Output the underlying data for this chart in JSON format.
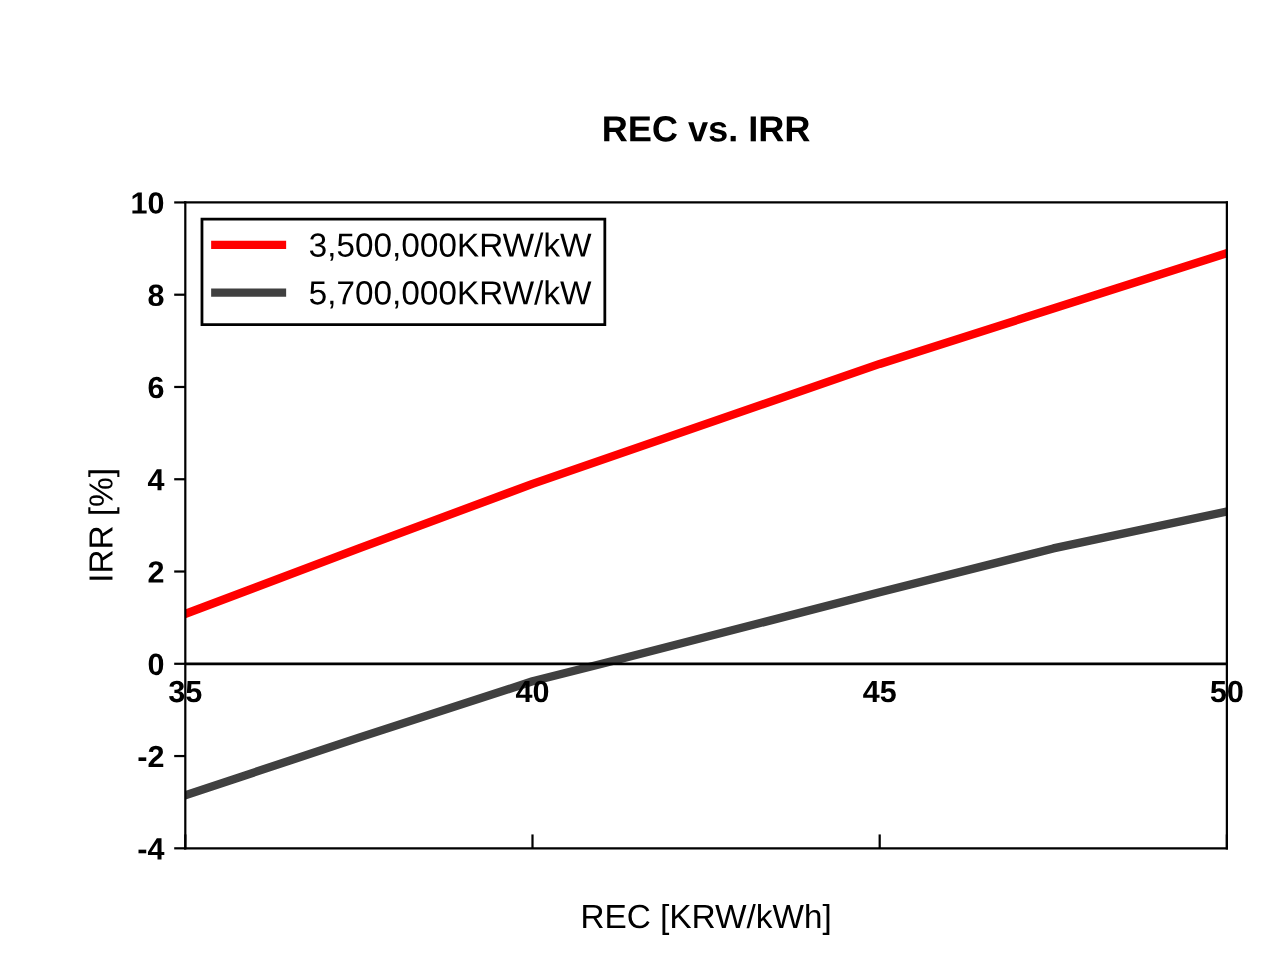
{
  "chart_data": {
    "type": "line",
    "title": "REC vs. IRR",
    "xlabel": "REC [KRW/kWh]",
    "ylabel": "IRR [%]",
    "xlim": [
      35,
      50
    ],
    "xticks": [
      35,
      40,
      45,
      50
    ],
    "ylim": [
      -4,
      10
    ],
    "yticks": [
      -4,
      -2,
      0,
      2,
      4,
      6,
      8,
      10
    ],
    "legend": "top left",
    "grid": false,
    "marker": "none",
    "line_style": "solid",
    "series": [
      {
        "name": "3,500,000KRW/kW",
        "color": "#ff0000",
        "x": [
          35,
          37.5,
          40,
          45,
          47.5,
          50
        ],
        "values": [
          1.08,
          2.5,
          3.9,
          6.5,
          7.7,
          8.9
        ]
      },
      {
        "name": "5,700,000KRW/kW",
        "color": "#404040",
        "x": [
          35,
          37.5,
          40,
          41,
          45,
          47.5,
          50
        ],
        "values": [
          -2.85,
          -1.6,
          -0.38,
          0,
          1.55,
          2.5,
          3.3
        ]
      }
    ]
  }
}
